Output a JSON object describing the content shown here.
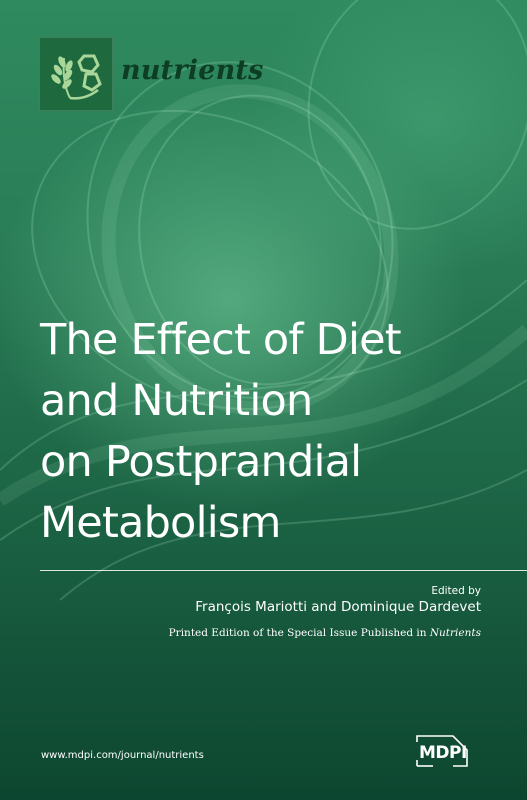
{
  "journal": {
    "name": "nutrients",
    "logo_icon": "wheat-molecule-logo-icon"
  },
  "title_lines": [
    "The Effect of Diet",
    "and Nutrition",
    "on Postprandial",
    "Metabolism"
  ],
  "edited_by_label": "Edited by",
  "editors": "François Mariotti and Dominique Dardevet",
  "printed_edition_prefix": "Printed Edition of the Special Issue Published in",
  "printed_edition_journal": "Nutrients",
  "website": "www.mdpi.com/journal/nutrients",
  "publisher": "MDPI",
  "colors": {
    "background": "#2a7d57",
    "logo_box": "#1e6a3e",
    "journal_name": "#0d3d24",
    "text": "#ffffff"
  }
}
